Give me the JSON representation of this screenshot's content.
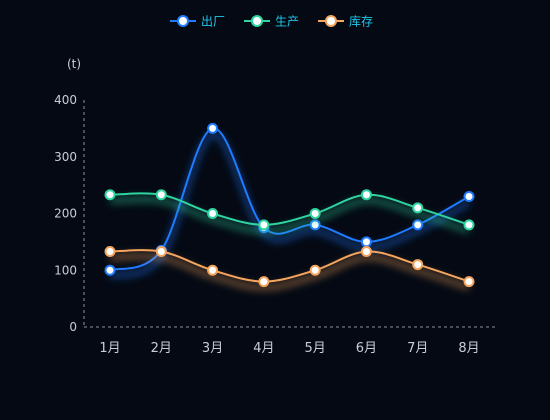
{
  "chart_data": {
    "type": "line",
    "smooth": true,
    "categories": [
      "1月",
      "2月",
      "3月",
      "4月",
      "5月",
      "6月",
      "7月",
      "8月"
    ],
    "unit": "(t)",
    "ylim": [
      0,
      400
    ],
    "yticks": [
      0,
      100,
      200,
      300,
      400
    ],
    "grid": false,
    "legend_position": "top-center",
    "series": [
      {
        "name": "出厂",
        "color": "#1f7bff",
        "values": [
          100,
          135,
          350,
          175,
          180,
          150,
          180,
          230
        ]
      },
      {
        "name": "生产",
        "color": "#2fd4a0",
        "values": [
          233,
          233,
          200,
          180,
          200,
          233,
          210,
          180
        ]
      },
      {
        "name": "库存",
        "color": "#f5a55d",
        "values": [
          133,
          133,
          100,
          80,
          100,
          133,
          110,
          80
        ]
      }
    ]
  }
}
